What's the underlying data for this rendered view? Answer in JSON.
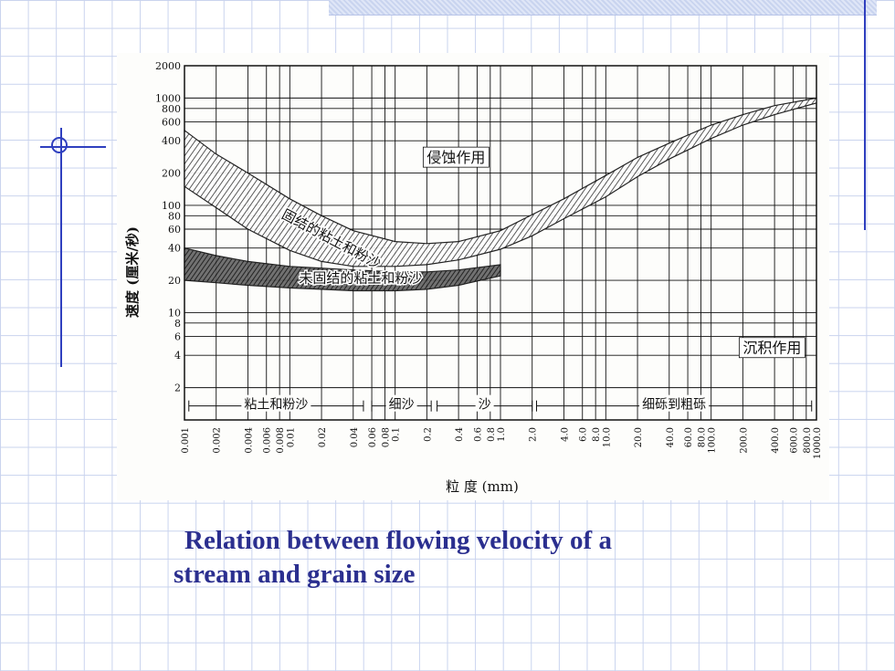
{
  "caption": {
    "line1": "Relation between flowing velocity of a",
    "line2": "stream and grain size"
  },
  "chart_data": {
    "type": "area",
    "title": "",
    "xlabel": "粒  度 (mm)",
    "ylabel": "速度 (厘米/秒)",
    "x_scale": "log",
    "y_scale": "log",
    "xlim": [
      0.001,
      1000
    ],
    "ylim": [
      1,
      2000
    ],
    "x_tick_labels": [
      "0.001",
      "0.002",
      "0.004",
      "0.006",
      "0.008",
      "0.01",
      "0.02",
      "0.04",
      "0.06",
      "0.08",
      "0.1",
      "0.2",
      "0.4",
      "0.6",
      "0.8",
      "1.0",
      "2.0",
      "4.0",
      "6.0",
      "8.0",
      "10.0",
      "20.0",
      "40.0",
      "60.0",
      "80.0",
      "100.0",
      "200.0",
      "400.0",
      "600.0",
      "800.0",
      "1000.0"
    ],
    "y_tick_labels": [
      "2",
      "4",
      "6",
      "8",
      "10",
      "20",
      "40",
      "60",
      "80",
      "100",
      "200",
      "400",
      "600",
      "800",
      "1000",
      "2000"
    ],
    "series": [
      {
        "name": "固结的粘土和粉沙",
        "x": [
          0.001,
          0.002,
          0.004,
          0.01,
          0.02,
          0.04,
          0.1,
          0.2,
          0.4,
          1.0,
          2.0,
          4.0,
          10.0,
          20.0,
          40.0,
          100.0,
          200.0,
          400.0,
          1000.0
        ],
        "upper": [
          500,
          300,
          200,
          115,
          80,
          58,
          46,
          44,
          46,
          58,
          82,
          115,
          190,
          280,
          380,
          560,
          700,
          850,
          1000
        ],
        "lower": [
          150,
          95,
          60,
          38,
          30,
          27,
          27,
          28,
          31,
          39,
          52,
          75,
          120,
          185,
          270,
          420,
          560,
          700,
          900
        ]
      },
      {
        "name": "未固结的粘土和粉沙",
        "x": [
          0.001,
          0.002,
          0.004,
          0.01,
          0.02,
          0.04,
          0.1,
          0.2,
          0.4,
          1.0
        ],
        "upper": [
          40,
          34,
          30,
          27,
          26,
          25,
          24,
          24,
          25,
          28
        ],
        "lower": [
          20,
          19,
          18,
          17,
          16.5,
          16,
          16,
          16.5,
          18,
          22
        ]
      }
    ],
    "annotations": [
      "侵蚀作用",
      "沉积作用"
    ],
    "size_classes": [
      "粘土和粉沙",
      "细沙",
      "沙",
      "细砾到粗砾"
    ]
  }
}
